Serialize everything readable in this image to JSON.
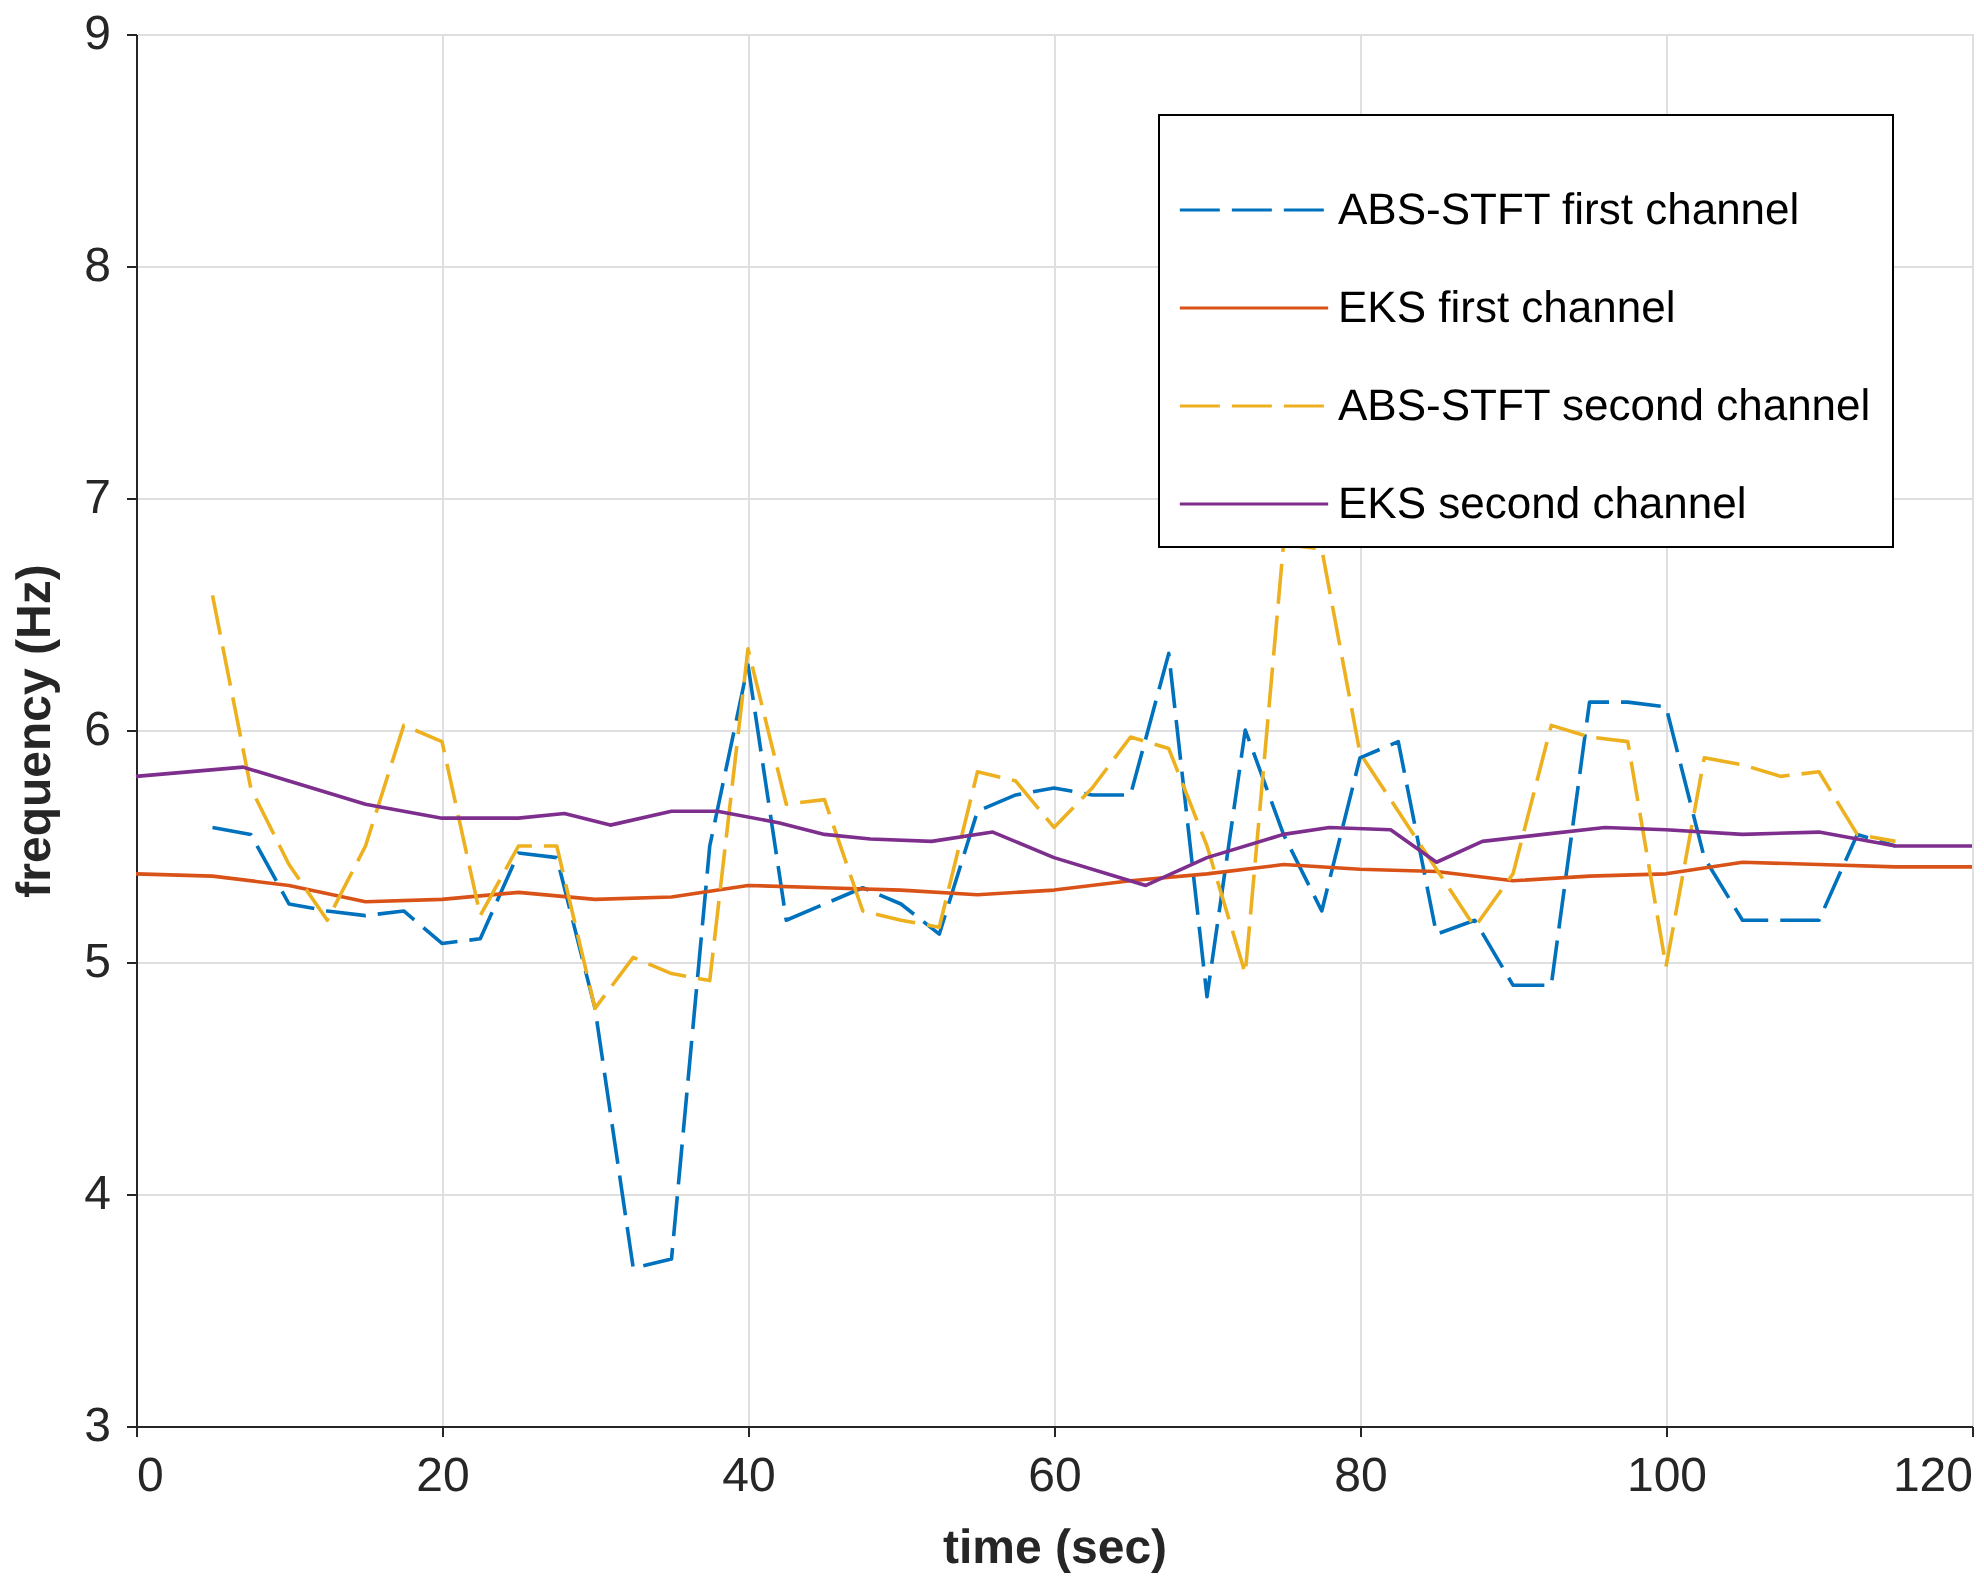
{
  "chart_data": {
    "type": "line",
    "xlabel": "time (sec)",
    "ylabel": "frequency (Hz)",
    "xlim": [
      0,
      120
    ],
    "xticks": [
      0,
      20,
      40,
      60,
      80,
      100,
      120
    ],
    "ylim": [
      3,
      9
    ],
    "yticks": [
      3,
      4,
      5,
      6,
      7,
      8,
      9
    ],
    "grid": true,
    "legend": "top right",
    "series": [
      {
        "name": "ABS-STFT first channel",
        "color": "#0072bd",
        "line_style": "dashed",
        "x": [
          5,
          7.5,
          10,
          12.5,
          15,
          17.5,
          20,
          22.5,
          25,
          27.5,
          30,
          32.5,
          35,
          37.5,
          40,
          42.5,
          45,
          47.5,
          50,
          52.5,
          55,
          57.5,
          60,
          62.5,
          65,
          67.5,
          70,
          72.5,
          75,
          77.5,
          80,
          82.5,
          85,
          87.5,
          90,
          92.5,
          95,
          97.5,
          100,
          102.5,
          105,
          107.5,
          110,
          112.5,
          115
        ],
        "values": [
          5.58,
          5.55,
          5.25,
          5.22,
          5.2,
          5.22,
          5.08,
          5.1,
          5.47,
          5.45,
          4.8,
          3.68,
          3.72,
          5.5,
          6.28,
          5.18,
          5.25,
          5.32,
          5.25,
          5.12,
          5.65,
          5.72,
          5.75,
          5.72,
          5.72,
          6.33,
          4.85,
          6.0,
          5.55,
          5.22,
          5.88,
          5.95,
          5.12,
          5.18,
          4.9,
          4.9,
          6.12,
          6.12,
          6.1,
          5.45,
          5.18,
          5.18,
          5.18,
          5.55,
          5.5
        ]
      },
      {
        "name": " EKS first channel",
        "color": "#d95319",
        "line_style": "solid",
        "x": [
          0,
          5,
          10,
          15,
          20,
          25,
          30,
          35,
          40,
          45,
          50,
          55,
          60,
          65,
          70,
          75,
          80,
          85,
          90,
          95,
          100,
          105,
          110,
          115,
          120
        ],
        "values": [
          5.38,
          5.37,
          5.33,
          5.26,
          5.27,
          5.3,
          5.27,
          5.28,
          5.33,
          5.32,
          5.31,
          5.29,
          5.31,
          5.35,
          5.38,
          5.42,
          5.4,
          5.39,
          5.35,
          5.37,
          5.38,
          5.43,
          5.42,
          5.41,
          5.41
        ]
      },
      {
        "name": "ABS-STFT second channel",
        "color": "#edb120",
        "line_style": "dashed",
        "x": [
          5,
          7.5,
          10,
          12.5,
          15,
          17.5,
          20,
          22.5,
          25,
          27.5,
          30,
          32.5,
          35,
          37.5,
          40,
          42.5,
          45,
          47.5,
          50,
          52.5,
          55,
          57.5,
          60,
          62.5,
          65,
          67.5,
          70,
          72.5,
          75,
          77.5,
          80,
          82.5,
          85,
          87.5,
          90,
          92.5,
          95,
          97.5,
          100,
          102.5,
          105,
          107.5,
          110,
          112.5,
          115
        ],
        "values": [
          6.58,
          5.75,
          5.42,
          5.18,
          5.5,
          6.02,
          5.95,
          5.2,
          5.5,
          5.5,
          4.8,
          5.02,
          4.95,
          4.92,
          6.35,
          5.68,
          5.7,
          5.22,
          5.18,
          5.15,
          5.82,
          5.78,
          5.58,
          5.75,
          5.97,
          5.92,
          5.5,
          4.95,
          6.8,
          6.78,
          5.9,
          5.65,
          5.4,
          5.15,
          5.38,
          6.02,
          5.97,
          5.95,
          4.98,
          5.88,
          5.85,
          5.8,
          5.82,
          5.55,
          5.52
        ]
      },
      {
        "name": " EKS second channel",
        "color": "#7e2f8e",
        "line_style": "solid",
        "x": [
          0,
          7,
          10,
          15,
          20,
          25,
          28,
          31,
          35,
          38,
          42,
          45,
          48,
          52,
          56,
          60,
          64,
          66,
          70,
          75,
          78,
          82,
          85,
          88,
          92,
          96,
          100,
          105,
          110,
          115,
          120
        ],
        "values": [
          5.8,
          5.84,
          5.78,
          5.68,
          5.62,
          5.62,
          5.64,
          5.59,
          5.65,
          5.65,
          5.6,
          5.55,
          5.53,
          5.52,
          5.56,
          5.45,
          5.37,
          5.33,
          5.45,
          5.55,
          5.58,
          5.57,
          5.43,
          5.52,
          5.55,
          5.58,
          5.57,
          5.55,
          5.56,
          5.5,
          5.5
        ]
      }
    ]
  }
}
